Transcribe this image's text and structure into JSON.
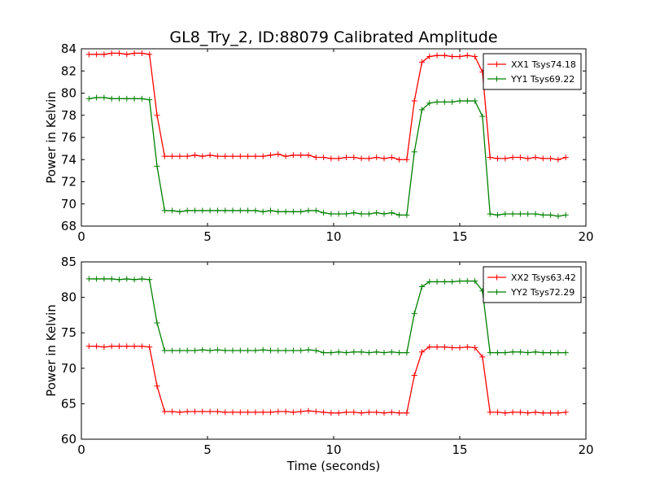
{
  "chart_data": [
    {
      "type": "line",
      "title": "GL8_Try_2, ID:88079 Calibrated Amplitude",
      "xlabel": "",
      "ylabel": "Power in Kelvin",
      "xlim": [
        0,
        20
      ],
      "ylim": [
        68,
        84
      ],
      "xticks": [
        0,
        5,
        10,
        15,
        20
      ],
      "yticks": [
        68,
        70,
        72,
        74,
        76,
        78,
        80,
        82,
        84
      ],
      "legend_position": "upper-right",
      "grid": false,
      "x": [
        0.3,
        0.6,
        0.9,
        1.2,
        1.5,
        1.8,
        2.1,
        2.4,
        2.7,
        3.0,
        3.3,
        3.6,
        3.9,
        4.2,
        4.5,
        4.8,
        5.1,
        5.4,
        5.7,
        6.0,
        6.3,
        6.6,
        6.9,
        7.2,
        7.5,
        7.8,
        8.1,
        8.4,
        8.7,
        9.0,
        9.3,
        9.6,
        9.9,
        10.2,
        10.5,
        10.8,
        11.1,
        11.4,
        11.7,
        12.0,
        12.3,
        12.6,
        12.9,
        13.2,
        13.5,
        13.8,
        14.1,
        14.4,
        14.7,
        15.0,
        15.3,
        15.6,
        15.9,
        16.2,
        16.5,
        16.8,
        17.1,
        17.4,
        17.7,
        18.0,
        18.3,
        18.6,
        18.9,
        19.2
      ],
      "series": [
        {
          "name": "XX1 Tsys74.18",
          "color": "#ff0000",
          "values": [
            83.5,
            83.5,
            83.5,
            83.6,
            83.6,
            83.5,
            83.6,
            83.6,
            83.5,
            78.0,
            74.3,
            74.3,
            74.3,
            74.3,
            74.4,
            74.3,
            74.4,
            74.3,
            74.3,
            74.3,
            74.3,
            74.3,
            74.3,
            74.3,
            74.4,
            74.5,
            74.3,
            74.4,
            74.4,
            74.4,
            74.2,
            74.2,
            74.1,
            74.1,
            74.2,
            74.2,
            74.1,
            74.1,
            74.2,
            74.1,
            74.2,
            74.0,
            74.0,
            79.3,
            82.8,
            83.3,
            83.4,
            83.4,
            83.3,
            83.3,
            83.4,
            83.3,
            81.9,
            74.2,
            74.1,
            74.1,
            74.2,
            74.2,
            74.1,
            74.2,
            74.1,
            74.1,
            74.0,
            74.2
          ]
        },
        {
          "name": "YY1 Tsys69.22",
          "color": "#008000",
          "values": [
            79.5,
            79.6,
            79.6,
            79.5,
            79.5,
            79.5,
            79.5,
            79.5,
            79.4,
            73.4,
            69.4,
            69.4,
            69.3,
            69.4,
            69.4,
            69.4,
            69.4,
            69.4,
            69.4,
            69.4,
            69.4,
            69.4,
            69.4,
            69.3,
            69.4,
            69.3,
            69.3,
            69.3,
            69.3,
            69.4,
            69.4,
            69.2,
            69.1,
            69.1,
            69.1,
            69.2,
            69.1,
            69.1,
            69.2,
            69.1,
            69.2,
            69.0,
            69.0,
            74.7,
            78.5,
            79.1,
            79.2,
            79.2,
            79.2,
            79.3,
            79.3,
            79.3,
            77.9,
            69.1,
            69.0,
            69.1,
            69.1,
            69.1,
            69.1,
            69.1,
            69.0,
            69.0,
            68.9,
            69.0
          ]
        }
      ]
    },
    {
      "type": "line",
      "title": "",
      "xlabel": "Time (seconds)",
      "ylabel": "Power in Kelvin",
      "xlim": [
        0,
        20
      ],
      "ylim": [
        60,
        85
      ],
      "xticks": [
        0,
        5,
        10,
        15,
        20
      ],
      "yticks": [
        60,
        65,
        70,
        75,
        80,
        85
      ],
      "legend_position": "upper-right",
      "grid": false,
      "x": [
        0.3,
        0.6,
        0.9,
        1.2,
        1.5,
        1.8,
        2.1,
        2.4,
        2.7,
        3.0,
        3.3,
        3.6,
        3.9,
        4.2,
        4.5,
        4.8,
        5.1,
        5.4,
        5.7,
        6.0,
        6.3,
        6.6,
        6.9,
        7.2,
        7.5,
        7.8,
        8.1,
        8.4,
        8.7,
        9.0,
        9.3,
        9.6,
        9.9,
        10.2,
        10.5,
        10.8,
        11.1,
        11.4,
        11.7,
        12.0,
        12.3,
        12.6,
        12.9,
        13.2,
        13.5,
        13.8,
        14.1,
        14.4,
        14.7,
        15.0,
        15.3,
        15.6,
        15.9,
        16.2,
        16.5,
        16.8,
        17.1,
        17.4,
        17.7,
        18.0,
        18.3,
        18.6,
        18.9,
        19.2
      ],
      "series": [
        {
          "name": "XX2 Tsys63.42",
          "color": "#ff0000",
          "values": [
            73.1,
            73.1,
            73.0,
            73.1,
            73.1,
            73.1,
            73.1,
            73.1,
            73.0,
            67.5,
            63.9,
            63.9,
            63.8,
            63.9,
            63.9,
            63.9,
            63.9,
            63.9,
            63.8,
            63.8,
            63.8,
            63.8,
            63.8,
            63.8,
            63.8,
            63.9,
            63.9,
            63.8,
            63.9,
            64.0,
            63.9,
            63.8,
            63.7,
            63.7,
            63.8,
            63.8,
            63.7,
            63.8,
            63.8,
            63.7,
            63.8,
            63.7,
            63.7,
            69.0,
            72.3,
            73.0,
            73.0,
            73.0,
            72.9,
            72.9,
            73.0,
            72.9,
            71.6,
            63.8,
            63.8,
            63.7,
            63.8,
            63.8,
            63.7,
            63.8,
            63.7,
            63.7,
            63.7,
            63.8
          ]
        },
        {
          "name": "YY2 Tsys72.29",
          "color": "#008000",
          "values": [
            82.6,
            82.6,
            82.6,
            82.6,
            82.5,
            82.6,
            82.5,
            82.6,
            82.5,
            76.4,
            72.5,
            72.5,
            72.5,
            72.5,
            72.5,
            72.6,
            72.5,
            72.6,
            72.5,
            72.5,
            72.5,
            72.5,
            72.5,
            72.6,
            72.5,
            72.5,
            72.5,
            72.5,
            72.5,
            72.6,
            72.5,
            72.2,
            72.2,
            72.3,
            72.2,
            72.3,
            72.3,
            72.2,
            72.3,
            72.2,
            72.3,
            72.2,
            72.2,
            77.7,
            81.5,
            82.2,
            82.2,
            82.2,
            82.2,
            82.3,
            82.3,
            82.3,
            80.9,
            72.2,
            72.2,
            72.2,
            72.3,
            72.3,
            72.2,
            72.3,
            72.2,
            72.2,
            72.2,
            72.2
          ]
        }
      ]
    }
  ]
}
